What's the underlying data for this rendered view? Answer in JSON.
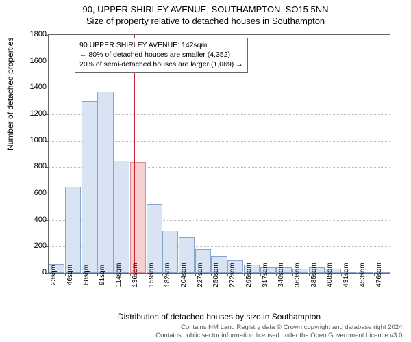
{
  "title": "90, UPPER SHIRLEY AVENUE, SOUTHAMPTON, SO15 5NN",
  "subtitle": "Size of property relative to detached houses in Southampton",
  "ylabel": "Number of detached properties",
  "xlabel": "Distribution of detached houses by size in Southampton",
  "chart": {
    "type": "histogram",
    "ylim": [
      0,
      1800
    ],
    "ytick_step": 200,
    "yticks": [
      0,
      200,
      400,
      600,
      800,
      1000,
      1200,
      1400,
      1600,
      1800
    ],
    "xticks": [
      "23sqm",
      "46sqm",
      "68sqm",
      "91sqm",
      "114sqm",
      "136sqm",
      "159sqm",
      "182sqm",
      "204sqm",
      "227sqm",
      "250sqm",
      "272sqm",
      "295sqm",
      "317sqm",
      "340sqm",
      "363sqm",
      "385sqm",
      "408sqm",
      "431sqm",
      "453sqm",
      "476sqm"
    ],
    "values": [
      65,
      650,
      1300,
      1370,
      850,
      840,
      520,
      320,
      270,
      180,
      130,
      100,
      60,
      40,
      40,
      30,
      40,
      30,
      0,
      0,
      0
    ],
    "bar_fill": "#d8e3f4",
    "bar_stroke": "#8aa3c8",
    "highlight_fill": "#f6cfd2",
    "highlight_stroke": "#d98f95",
    "highlight_index": 5,
    "marker_color": "#d02030",
    "marker_value_sqm": 142,
    "x_start": 23,
    "x_step": 22.65,
    "axis_color": "#666666",
    "grid_color": "#bbbbbb",
    "background_color": "#ffffff",
    "label_fontsize": 12,
    "tick_fontsize": 11,
    "title_fontsize": 13,
    "annotation_fontsize": 10.5
  },
  "annotation": {
    "line1": "90 UPPER SHIRLEY AVENUE: 142sqm",
    "line2": "← 80% of detached houses are smaller (4,352)",
    "line3": "20% of semi-detached houses are larger (1,069) →"
  },
  "footnote": {
    "line1": "Contains HM Land Registry data © Crown copyright and database right 2024.",
    "line2": "Contains public sector information licensed under the Open Government Licence v3.0."
  }
}
